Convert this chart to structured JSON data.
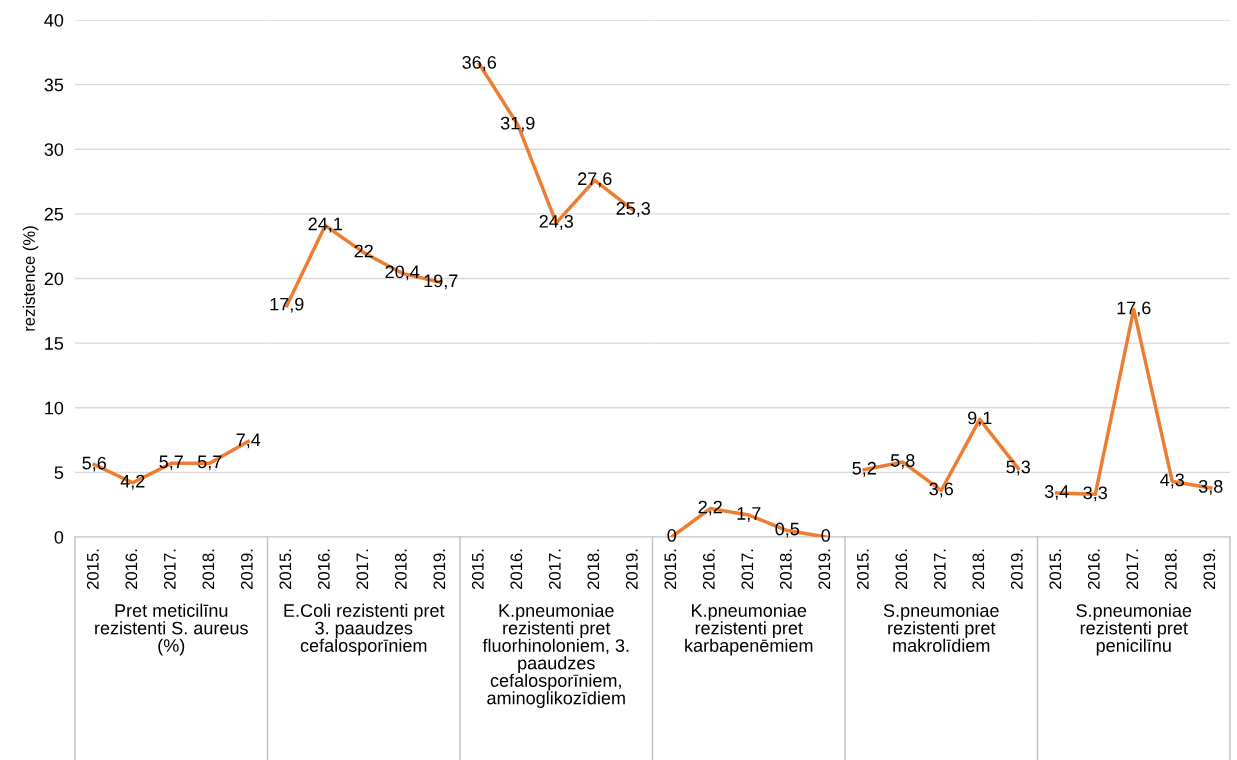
{
  "chart_data": [
    {
      "type": "line",
      "ylabel": "rezistence (%)",
      "xlabel": "Pret meticilīnu\nrezistenti S. aureus\n(%)",
      "categories": [
        "2015.",
        "2016.",
        "2017.",
        "2018.",
        "2019."
      ],
      "values": [
        5.6,
        4.2,
        5.7,
        5.7,
        7.4
      ],
      "value_labels": [
        "5,6",
        "4,2",
        "5,7",
        "5,7",
        "7,4"
      ],
      "color": "#ed7d31",
      "ylim": [
        0,
        40
      ],
      "yticks": [
        0,
        5,
        10,
        15,
        20,
        25,
        30,
        35,
        40
      ],
      "grid": "y"
    },
    {
      "type": "line",
      "xlabel": "E.Coli rezistenti pret\n3. paaudzes\ncefalosporīniem",
      "categories": [
        "2015.",
        "2016.",
        "2017.",
        "2018.",
        "2019."
      ],
      "values": [
        17.9,
        24.1,
        22,
        20.4,
        19.7
      ],
      "value_labels": [
        "17,9",
        "24,1",
        "22",
        "20,4",
        "19,7"
      ],
      "color": "#ed7d31",
      "ylim": [
        0,
        40
      ],
      "yticks": [
        0,
        5,
        10,
        15,
        20,
        25,
        30,
        35,
        40
      ],
      "grid": "y",
      "tick_labels": "x"
    },
    {
      "type": "line",
      "xlabel": "K.pneumoniae\nrezistenti pret\nfluorhinoloniem, 3.\npaaudzes\ncefalosporīniem,\naminoglikozīdiem",
      "categories": [
        "2015.",
        "2016.",
        "2017.",
        "2018.",
        "2019."
      ],
      "values": [
        36.6,
        31.9,
        24.3,
        27.6,
        25.3
      ],
      "value_labels": [
        "36,6",
        "31,9",
        "24,3",
        "27,6",
        "25,3"
      ],
      "color": "#ed7d31",
      "ylim": [
        0,
        40
      ],
      "yticks": [
        0,
        5,
        10,
        15,
        20,
        25,
        30,
        35,
        40
      ],
      "grid": "y",
      "tick_labels": "x"
    },
    {
      "type": "line",
      "xlabel": "K.pneumoniae\nrezistenti pret\nkarbapenēmiem",
      "categories": [
        "2015.",
        "2016.",
        "2017.",
        "2018.",
        "2019."
      ],
      "values": [
        0,
        2.2,
        1.7,
        0.5,
        0
      ],
      "value_labels": [
        "0",
        "2,2",
        "1,7",
        "0,5",
        "0"
      ],
      "color": "#ed7d31",
      "ylim": [
        0,
        40
      ],
      "yticks": [
        0,
        5,
        10,
        15,
        20,
        25,
        30,
        35,
        40
      ],
      "grid": "y",
      "tick_labels": "x"
    },
    {
      "type": "line",
      "xlabel": "S.pneumoniae\nrezistenti pret\nmakrolīdiem",
      "categories": [
        "2015.",
        "2016.",
        "2017.",
        "2018.",
        "2019."
      ],
      "values": [
        5.2,
        5.8,
        3.6,
        9.1,
        5.3
      ],
      "value_labels": [
        "5,2",
        "5,8",
        "3,6",
        "9,1",
        "5,3"
      ],
      "color": "#ed7d31",
      "ylim": [
        0,
        40
      ],
      "yticks": [
        0,
        5,
        10,
        15,
        20,
        25,
        30,
        35,
        40
      ],
      "grid": "y",
      "tick_labels": "x"
    },
    {
      "type": "line",
      "xlabel": "S.pneumoniae\nrezistenti pret\npenicilīnu",
      "categories": [
        "2015.",
        "2016.",
        "2017.",
        "2018.",
        "2019."
      ],
      "values": [
        3.4,
        3.3,
        17.6,
        4.3,
        3.8
      ],
      "value_labels": [
        "3,4",
        "3,3",
        "17,6",
        "4,3",
        "3,8"
      ],
      "color": "#ed7d31",
      "ylim": [
        0,
        40
      ],
      "yticks": [
        0,
        5,
        10,
        15,
        20,
        25,
        30,
        35,
        40
      ],
      "grid": "y",
      "tick_labels": "x"
    }
  ]
}
